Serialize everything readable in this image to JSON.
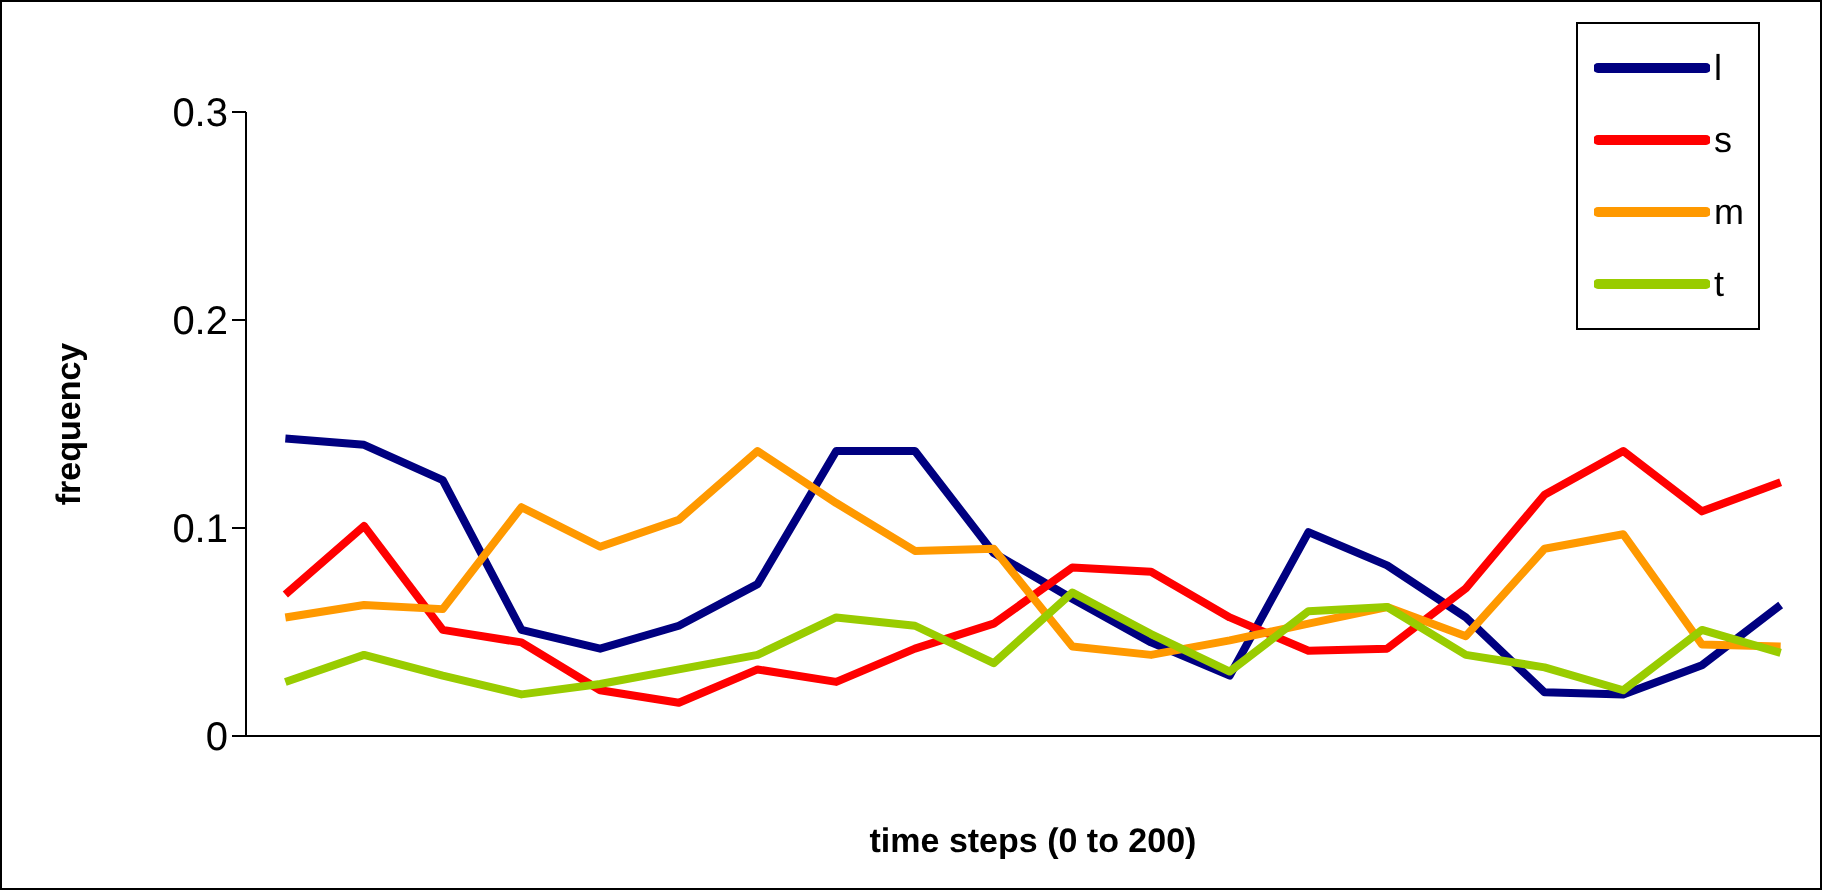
{
  "chart_data": {
    "type": "line",
    "xlabel": "time steps (0 to 200)",
    "ylabel": "frequency",
    "categories": [
      null,
      null,
      null,
      null,
      null,
      null,
      null,
      null,
      null,
      null,
      null,
      null,
      null,
      null,
      null,
      null,
      null,
      null,
      null,
      null
    ],
    "ylim": [
      0,
      0.3
    ],
    "yticks": [
      0,
      0.1,
      0.2,
      0.3
    ],
    "grid": false,
    "legend": "top right",
    "marker": "none",
    "line_style": "solid",
    "series": [
      {
        "name": "l",
        "color": "#000080",
        "values": [
          0.143,
          0.14,
          0.123,
          0.051,
          0.042,
          0.053,
          0.073,
          0.137,
          0.137,
          0.088,
          0.066,
          0.045,
          0.029,
          0.098,
          0.082,
          0.057,
          0.021,
          0.02,
          0.034,
          0.063
        ]
      },
      {
        "name": "s",
        "color": "#ff0000",
        "values": [
          0.068,
          0.101,
          0.051,
          0.045,
          0.022,
          0.016,
          0.032,
          0.026,
          0.042,
          0.054,
          0.081,
          0.079,
          0.057,
          0.041,
          0.042,
          0.071,
          0.116,
          0.137,
          0.108,
          0.122
        ]
      },
      {
        "name": "m",
        "color": "#ff9900",
        "values": [
          0.057,
          0.063,
          0.061,
          0.11,
          0.091,
          0.104,
          0.137,
          0.112,
          0.089,
          0.09,
          0.043,
          0.039,
          0.046,
          0.054,
          0.062,
          0.048,
          0.09,
          0.097,
          0.044,
          0.043
        ]
      },
      {
        "name": "t",
        "color": "#99cc00",
        "values": [
          0.026,
          0.039,
          0.029,
          0.02,
          0.025,
          0.032,
          0.039,
          0.057,
          0.053,
          0.035,
          0.069,
          0.049,
          0.031,
          0.06,
          0.062,
          0.039,
          0.033,
          0.022,
          0.051,
          0.04
        ]
      }
    ]
  }
}
